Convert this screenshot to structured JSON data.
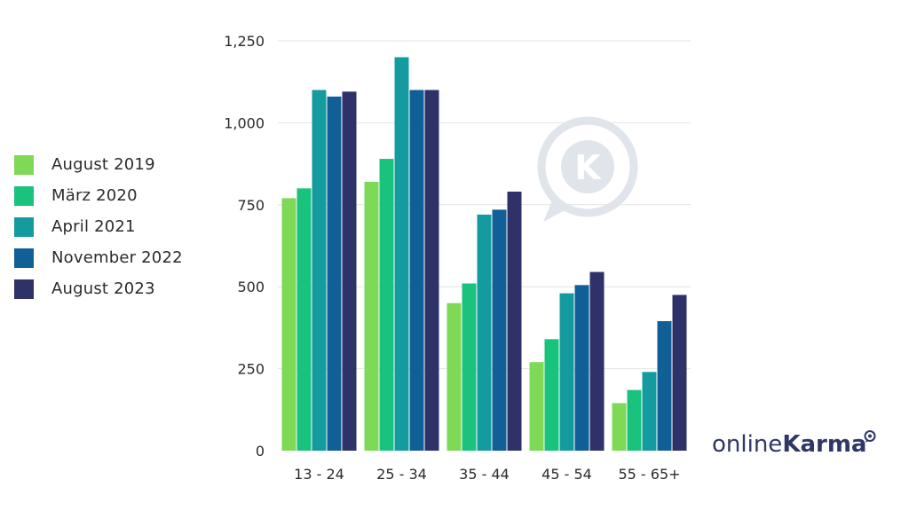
{
  "brand": {
    "light": "online",
    "bold": "Karma",
    "watermark_letter": "K",
    "logo_icon": "speech-bubble-k-icon"
  },
  "colors": {
    "August 2019": "#7ed957",
    "März 2020": "#19c37d",
    "April 2021": "#139ba0",
    "November 2022": "#105f96",
    "August 2023": "#2e3268",
    "grid": "#e3e3e3",
    "brand": "#2e3766",
    "watermark": "#dfe5ea"
  },
  "chart_data": {
    "type": "bar",
    "categories": [
      "13 - 24",
      "25 - 34",
      "35 - 44",
      "45 - 54",
      "55 - 65+"
    ],
    "series": [
      {
        "name": "August 2019",
        "values": [
          770,
          820,
          450,
          270,
          145
        ]
      },
      {
        "name": "März 2020",
        "values": [
          800,
          890,
          510,
          340,
          185
        ]
      },
      {
        "name": "April 2021",
        "values": [
          1100,
          1200,
          720,
          480,
          240
        ]
      },
      {
        "name": "November 2022",
        "values": [
          1080,
          1100,
          735,
          505,
          395
        ]
      },
      {
        "name": "August 2023",
        "values": [
          1095,
          1100,
          790,
          545,
          475
        ]
      }
    ],
    "title": "",
    "xlabel": "",
    "ylabel": "",
    "ylim": [
      0,
      1250
    ],
    "yticks": [
      "0",
      "250",
      "500",
      "750",
      "1,000",
      "1,250"
    ],
    "grid": true,
    "legend_position": "left"
  }
}
